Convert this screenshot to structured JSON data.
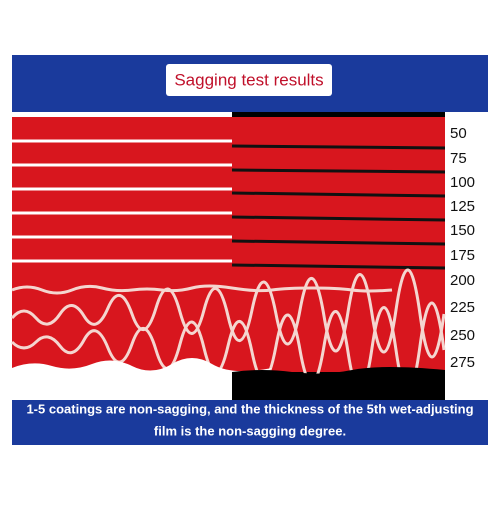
{
  "title": "Sagging test results",
  "labels": [
    50,
    75,
    100,
    125,
    150,
    175,
    200,
    225,
    250,
    275
  ],
  "caption": [
    "1-5 coatings are non-sagging, and the thickness of the 5th wet-adjusting",
    "film is the non-sagging degree."
  ]
}
